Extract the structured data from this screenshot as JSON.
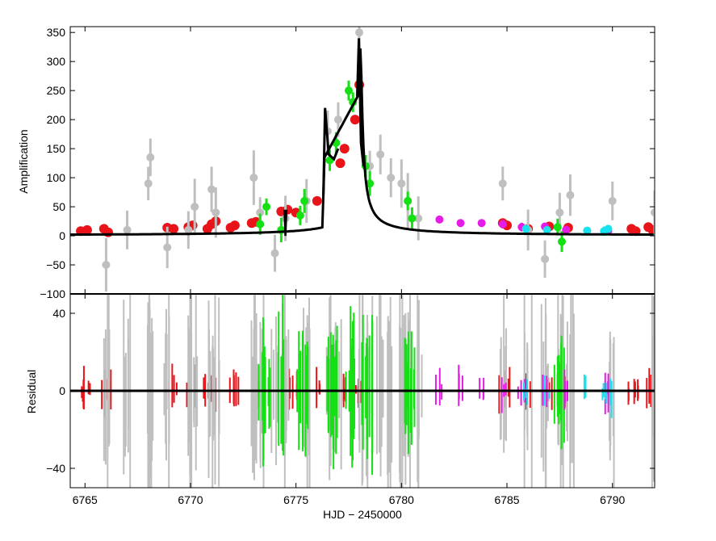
{
  "chart_data": [
    {
      "panel": "top",
      "type": "scatter",
      "xlabel": "",
      "ylabel": "Amplification",
      "xlim": [
        6764.3,
        6792
      ],
      "ylim": [
        -100,
        360
      ],
      "xticks": [
        6765,
        6770,
        6775,
        6780,
        6785,
        6790
      ],
      "yticks": [
        -100,
        -50,
        0,
        50,
        100,
        150,
        200,
        250,
        300,
        350
      ],
      "grid": false,
      "colors": {
        "red": "#e8141a",
        "gray": "#bfbfbf",
        "green": "#14e014",
        "magenta": "#e51ce5",
        "cyan": "#19e2ef",
        "model": "#000000"
      },
      "series": [
        {
          "color": "red",
          "x": [
            6764.8,
            6765.1,
            6765.9,
            6766.1,
            6768.9,
            6769.2,
            6769.9,
            6770.1,
            6770.8,
            6771.0,
            6771.2,
            6771.9,
            6772.1,
            6772.9,
            6773.1,
            6774.3,
            6774.6,
            6775.0,
            6776.0,
            6777.1,
            6777.3,
            6777.8,
            6778.0,
            6784.8,
            6785.0,
            6786.0,
            6787.0,
            6787.9,
            6790.9,
            6791.1,
            6791.7,
            6791.9
          ],
          "y": [
            8,
            10,
            12,
            6,
            14,
            12,
            15,
            18,
            12,
            20,
            25,
            14,
            18,
            22,
            24,
            42,
            45,
            40,
            60,
            125,
            150,
            200,
            260,
            22,
            18,
            12,
            16,
            14,
            12,
            8,
            15,
            10
          ]
        },
        {
          "color": "gray",
          "x": [
            6766.0,
            6767.0,
            6768.0,
            6768.1,
            6768.9,
            6769.9,
            6770.2,
            6771.0,
            6771.2,
            6773.0,
            6773.3,
            6774.0,
            6774.5,
            6775.5,
            6776.5,
            6777.0,
            6778.0,
            6778.5,
            6779.0,
            6779.5,
            6780.0,
            6780.3,
            6780.8,
            6784.8,
            6786.0,
            6786.8,
            6787.5,
            6788.0,
            6790.0,
            6792.0
          ],
          "y": [
            -50,
            10,
            90,
            135,
            -20,
            10,
            50,
            80,
            40,
            100,
            40,
            -30,
            30,
            60,
            180,
            200,
            350,
            120,
            140,
            100,
            90,
            60,
            30,
            90,
            10,
            -40,
            40,
            70,
            60,
            40
          ]
        },
        {
          "color": "green",
          "x": [
            6773.3,
            6773.6,
            6774.3,
            6775.2,
            6775.4,
            6776.6,
            6776.9,
            6777.5,
            6777.7,
            6778.3,
            6778.5,
            6780.3,
            6780.5,
            6787.4,
            6787.6
          ],
          "y": [
            20,
            50,
            10,
            35,
            60,
            130,
            160,
            250,
            230,
            120,
            90,
            60,
            30,
            15,
            -10
          ]
        },
        {
          "color": "magenta",
          "x": [
            6781.8,
            6782.8,
            6783.8,
            6784.8,
            6785.7,
            6786.8,
            6787.8,
            6789.8
          ],
          "y": [
            28,
            22,
            22,
            20,
            15,
            16,
            10,
            8
          ]
        },
        {
          "color": "cyan",
          "x": [
            6785.9,
            6786.9,
            6788.8,
            6789.6,
            6789.8
          ],
          "y": [
            12,
            10,
            9,
            8,
            12
          ]
        }
      ]
    },
    {
      "panel": "bottom",
      "type": "scatter",
      "xlabel": "HJD − 2450000",
      "ylabel": "Residual",
      "xlim": [
        6764.3,
        6792
      ],
      "ylim": [
        -50,
        50
      ],
      "xticks": [
        6765,
        6770,
        6775,
        6780,
        6785,
        6790
      ],
      "yticks": [
        -40,
        0,
        40
      ],
      "grid": false,
      "reference_line": 0
    }
  ]
}
